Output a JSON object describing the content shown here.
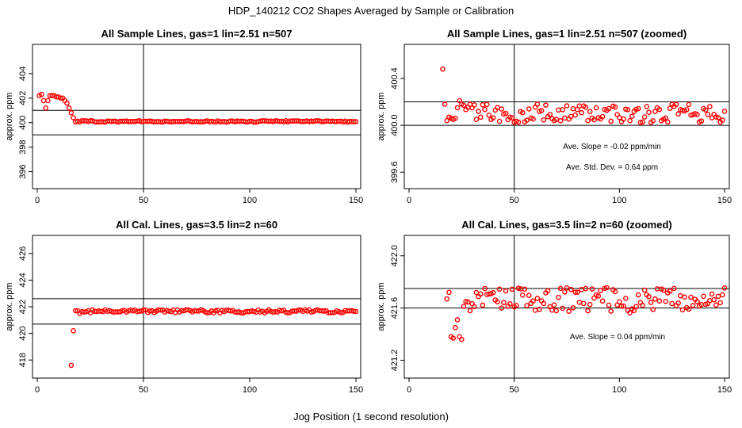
{
  "figure": {
    "title": "HDP_140212  CO2 Shapes Averaged by Sample or Calibration",
    "xlabel": "Jog Position (1 second resolution)"
  },
  "chart_data": [
    {
      "type": "scatter",
      "title": "All Sample Lines, gas=1 lin=2.51 n=507",
      "xlabel": "",
      "ylabel": "approx. ppm",
      "xlim": [
        0,
        150
      ],
      "ylim": [
        395,
        406
      ],
      "xticks": [
        0,
        50,
        100,
        150
      ],
      "yticks": [
        396,
        398,
        400,
        402,
        404
      ],
      "marker_color": "#ff0000",
      "vline_x": 50,
      "hlines_y": [
        399.0,
        401.0
      ],
      "annotations": [],
      "series": [
        {
          "x": [
            1,
            2,
            3,
            4,
            5,
            6,
            7,
            8,
            9,
            10,
            11,
            12,
            13,
            14,
            15,
            16,
            17
          ],
          "y": [
            402.2,
            402.3,
            401.8,
            401.2,
            401.8,
            402.2,
            402.2,
            402.2,
            402.1,
            402.1,
            402.0,
            402.0,
            401.8,
            401.6,
            401.2,
            400.8,
            400.4
          ]
        },
        {
          "x_start": 18,
          "x_end": 150,
          "y_base": 400.1,
          "y_amp": 0.06
        }
      ]
    },
    {
      "type": "scatter",
      "title": "All Sample Lines, gas=1 lin=2.51 n=507 (zoomed)",
      "xlabel": "",
      "ylabel": "approx. ppm",
      "xlim": [
        0,
        150
      ],
      "ylim": [
        399.5,
        400.65
      ],
      "xticks": [
        0,
        50,
        100,
        150
      ],
      "yticks": [
        399.6,
        400.0,
        400.4
      ],
      "ytick_labels": [
        "399.6",
        "400.0",
        "400.4"
      ],
      "marker_color": "#ff0000",
      "vline_x": 50,
      "hlines_y": [
        400.0,
        400.2
      ],
      "annotations": [
        "Ave. Slope =  -0.02  ppm/min",
        "Ave. Std. Dev. =  0.64  ppm"
      ],
      "series": [
        {
          "x": [
            16,
            17,
            18,
            19,
            20,
            21,
            22,
            23,
            24,
            25
          ],
          "y": [
            400.48,
            400.18,
            400.04,
            400.07,
            400.06,
            400.05,
            400.06,
            400.15,
            400.21,
            400.18
          ]
        },
        {
          "x_start": 26,
          "x_end": 150,
          "y_base": 400.1,
          "y_amp": 0.08
        }
      ]
    },
    {
      "type": "scatter",
      "title": "All Cal. Lines, gas=3.5 lin=2 n=60",
      "xlabel": "",
      "ylabel": "approx. ppm",
      "xlim": [
        0,
        150
      ],
      "ylim": [
        417,
        427
      ],
      "xticks": [
        0,
        50,
        100,
        150
      ],
      "yticks": [
        418,
        420,
        422,
        424,
        426
      ],
      "marker_color": "#ff0000",
      "vline_x": 50,
      "hlines_y": [
        420.7,
        422.6
      ],
      "annotations": [],
      "series": [
        {
          "x": [
            16,
            17,
            18,
            19,
            20
          ],
          "y": [
            417.6,
            420.2,
            421.7,
            421.7,
            421.5
          ]
        },
        {
          "x_start": 21,
          "x_end": 150,
          "y_base": 421.65,
          "y_amp": 0.12
        }
      ]
    },
    {
      "type": "scatter",
      "title": "All Cal. Lines, gas=3.5 lin=2 n=60 (zoomed)",
      "xlabel": "",
      "ylabel": "approx. ppm",
      "xlim": [
        0,
        150
      ],
      "ylim": [
        421.1,
        422.12
      ],
      "xticks": [
        0,
        50,
        100,
        150
      ],
      "yticks": [
        421.2,
        421.6,
        422.0
      ],
      "ytick_labels": [
        "421.2",
        "421.6",
        "422.0"
      ],
      "marker_color": "#ff0000",
      "vline_x": 50,
      "hlines_y": [
        421.6,
        421.75
      ],
      "annotations": [
        "Ave. Slope =  0.04  ppm/min"
      ],
      "series": [
        {
          "x": [
            18,
            19,
            20,
            21,
            22,
            23,
            24,
            25
          ],
          "y": [
            421.67,
            421.72,
            421.38,
            421.37,
            421.45,
            421.51,
            421.38,
            421.36
          ]
        },
        {
          "x_start": 26,
          "x_end": 150,
          "y_base": 421.66,
          "y_amp": 0.1
        }
      ]
    }
  ]
}
